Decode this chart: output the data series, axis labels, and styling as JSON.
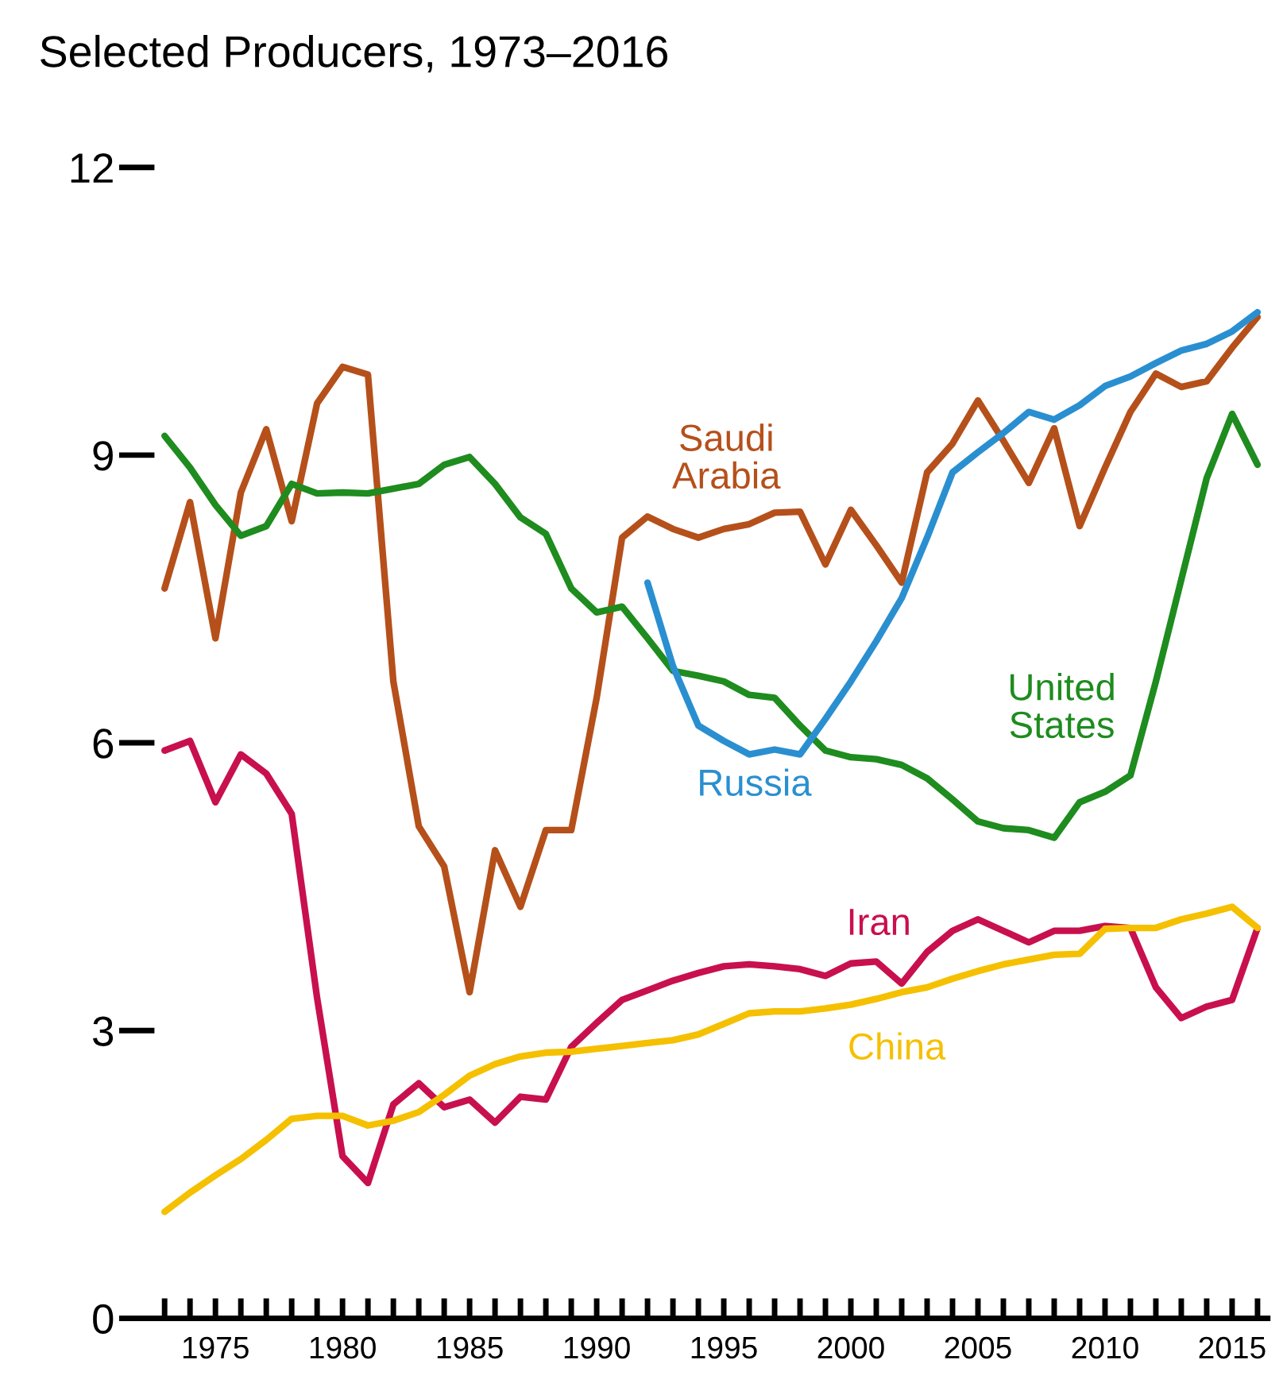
{
  "chart_data": {
    "type": "line",
    "title": "Selected Producers, 1973–2016",
    "x": [
      1973,
      1974,
      1975,
      1976,
      1977,
      1978,
      1979,
      1980,
      1981,
      1982,
      1983,
      1984,
      1985,
      1986,
      1987,
      1988,
      1989,
      1990,
      1991,
      1992,
      1993,
      1994,
      1995,
      1996,
      1997,
      1998,
      1999,
      2000,
      2001,
      2002,
      2003,
      2004,
      2005,
      2006,
      2007,
      2008,
      2009,
      2010,
      2011,
      2012,
      2013,
      2014,
      2015,
      2016
    ],
    "series": [
      {
        "name": "Saudi Arabia",
        "color": "#b5501b",
        "values": [
          7.61,
          8.51,
          7.09,
          8.61,
          9.27,
          8.31,
          9.54,
          9.92,
          9.84,
          6.64,
          5.13,
          4.71,
          3.4,
          4.88,
          4.29,
          5.09,
          5.09,
          6.47,
          8.14,
          8.36,
          8.23,
          8.14,
          8.23,
          8.28,
          8.4,
          8.41,
          7.86,
          8.43,
          8.06,
          7.67,
          8.82,
          9.12,
          9.57,
          9.15,
          8.71,
          9.28,
          8.26,
          8.87,
          9.45,
          9.85,
          9.71,
          9.77,
          10.12,
          10.44
        ]
      },
      {
        "name": "United States",
        "color": "#1e8c1e",
        "values": [
          9.2,
          8.87,
          8.48,
          8.16,
          8.26,
          8.7,
          8.6,
          8.61,
          8.6,
          8.65,
          8.7,
          8.9,
          8.98,
          8.7,
          8.35,
          8.18,
          7.61,
          7.36,
          7.42,
          7.09,
          6.75,
          6.7,
          6.64,
          6.5,
          6.47,
          6.18,
          5.92,
          5.85,
          5.83,
          5.77,
          5.63,
          5.41,
          5.18,
          5.11,
          5.09,
          5.01,
          5.38,
          5.49,
          5.66,
          6.64,
          7.7,
          8.76,
          9.43,
          8.9
        ]
      },
      {
        "name": "Russia",
        "color": "#2a8fd0",
        "values": [
          null,
          null,
          null,
          null,
          null,
          null,
          null,
          null,
          null,
          null,
          null,
          null,
          null,
          null,
          null,
          null,
          null,
          null,
          null,
          7.67,
          6.8,
          6.18,
          6.02,
          5.88,
          5.93,
          5.88,
          6.25,
          6.64,
          7.06,
          7.51,
          8.14,
          8.82,
          9.03,
          9.23,
          9.45,
          9.37,
          9.52,
          9.72,
          9.82,
          9.96,
          10.09,
          10.16,
          10.29,
          10.49
        ]
      },
      {
        "name": "Iran",
        "color": "#c8104e",
        "values": [
          5.92,
          6.02,
          5.38,
          5.88,
          5.68,
          5.26,
          3.34,
          1.69,
          1.41,
          2.23,
          2.45,
          2.2,
          2.28,
          2.04,
          2.31,
          2.28,
          2.83,
          3.08,
          3.32,
          3.42,
          3.52,
          3.6,
          3.67,
          3.69,
          3.67,
          3.64,
          3.57,
          3.7,
          3.72,
          3.49,
          3.82,
          4.04,
          4.16,
          4.04,
          3.92,
          4.04,
          4.04,
          4.09,
          4.07,
          3.45,
          3.13,
          3.25,
          3.32,
          4.07
        ]
      },
      {
        "name": "China",
        "color": "#f5c000",
        "values": [
          1.11,
          1.31,
          1.49,
          1.66,
          1.86,
          2.08,
          2.11,
          2.11,
          2.01,
          2.06,
          2.15,
          2.33,
          2.53,
          2.65,
          2.73,
          2.77,
          2.78,
          2.81,
          2.84,
          2.87,
          2.9,
          2.96,
          3.07,
          3.18,
          3.2,
          3.2,
          3.23,
          3.27,
          3.33,
          3.4,
          3.45,
          3.54,
          3.62,
          3.69,
          3.74,
          3.79,
          3.8,
          4.06,
          4.07,
          4.07,
          4.16,
          4.22,
          4.29,
          4.07
        ]
      }
    ],
    "xlim": [
      1972.6,
      2016.4
    ],
    "ylim": [
      0,
      12
    ],
    "xticks": [
      {
        "value": 1973,
        "label": null
      },
      {
        "value": 1974,
        "label": null
      },
      1975,
      {
        "value": 1976,
        "label": null
      },
      {
        "value": 1977,
        "label": null
      },
      {
        "value": 1978,
        "label": null
      },
      {
        "value": 1979,
        "label": null
      },
      1980,
      {
        "value": 1981,
        "label": null
      },
      {
        "value": 1982,
        "label": null
      },
      {
        "value": 1983,
        "label": null
      },
      {
        "value": 1984,
        "label": null
      },
      1985,
      {
        "value": 1986,
        "label": null
      },
      {
        "value": 1987,
        "label": null
      },
      {
        "value": 1988,
        "label": null
      },
      {
        "value": 1989,
        "label": null
      },
      1990,
      {
        "value": 1991,
        "label": null
      },
      {
        "value": 1992,
        "label": null
      },
      {
        "value": 1993,
        "label": null
      },
      {
        "value": 1994,
        "label": null
      },
      1995,
      {
        "value": 1996,
        "label": null
      },
      {
        "value": 1997,
        "label": null
      },
      {
        "value": 1998,
        "label": null
      },
      {
        "value": 1999,
        "label": null
      },
      2000,
      {
        "value": 2001,
        "label": null
      },
      {
        "value": 2002,
        "label": null
      },
      {
        "value": 2003,
        "label": null
      },
      {
        "value": 2004,
        "label": null
      },
      2005,
      {
        "value": 2006,
        "label": null
      },
      {
        "value": 2007,
        "label": null
      },
      {
        "value": 2008,
        "label": null
      },
      {
        "value": 2009,
        "label": null
      },
      2010,
      {
        "value": 2011,
        "label": null
      },
      {
        "value": 2012,
        "label": null
      },
      {
        "value": 2013,
        "label": null
      },
      {
        "value": 2014,
        "label": null
      },
      2015,
      {
        "value": 2016,
        "label": null
      }
    ],
    "yticks": [
      0,
      3,
      6,
      9,
      12
    ],
    "grid": false,
    "legend": false,
    "line_style": "solid",
    "marker": "none"
  }
}
